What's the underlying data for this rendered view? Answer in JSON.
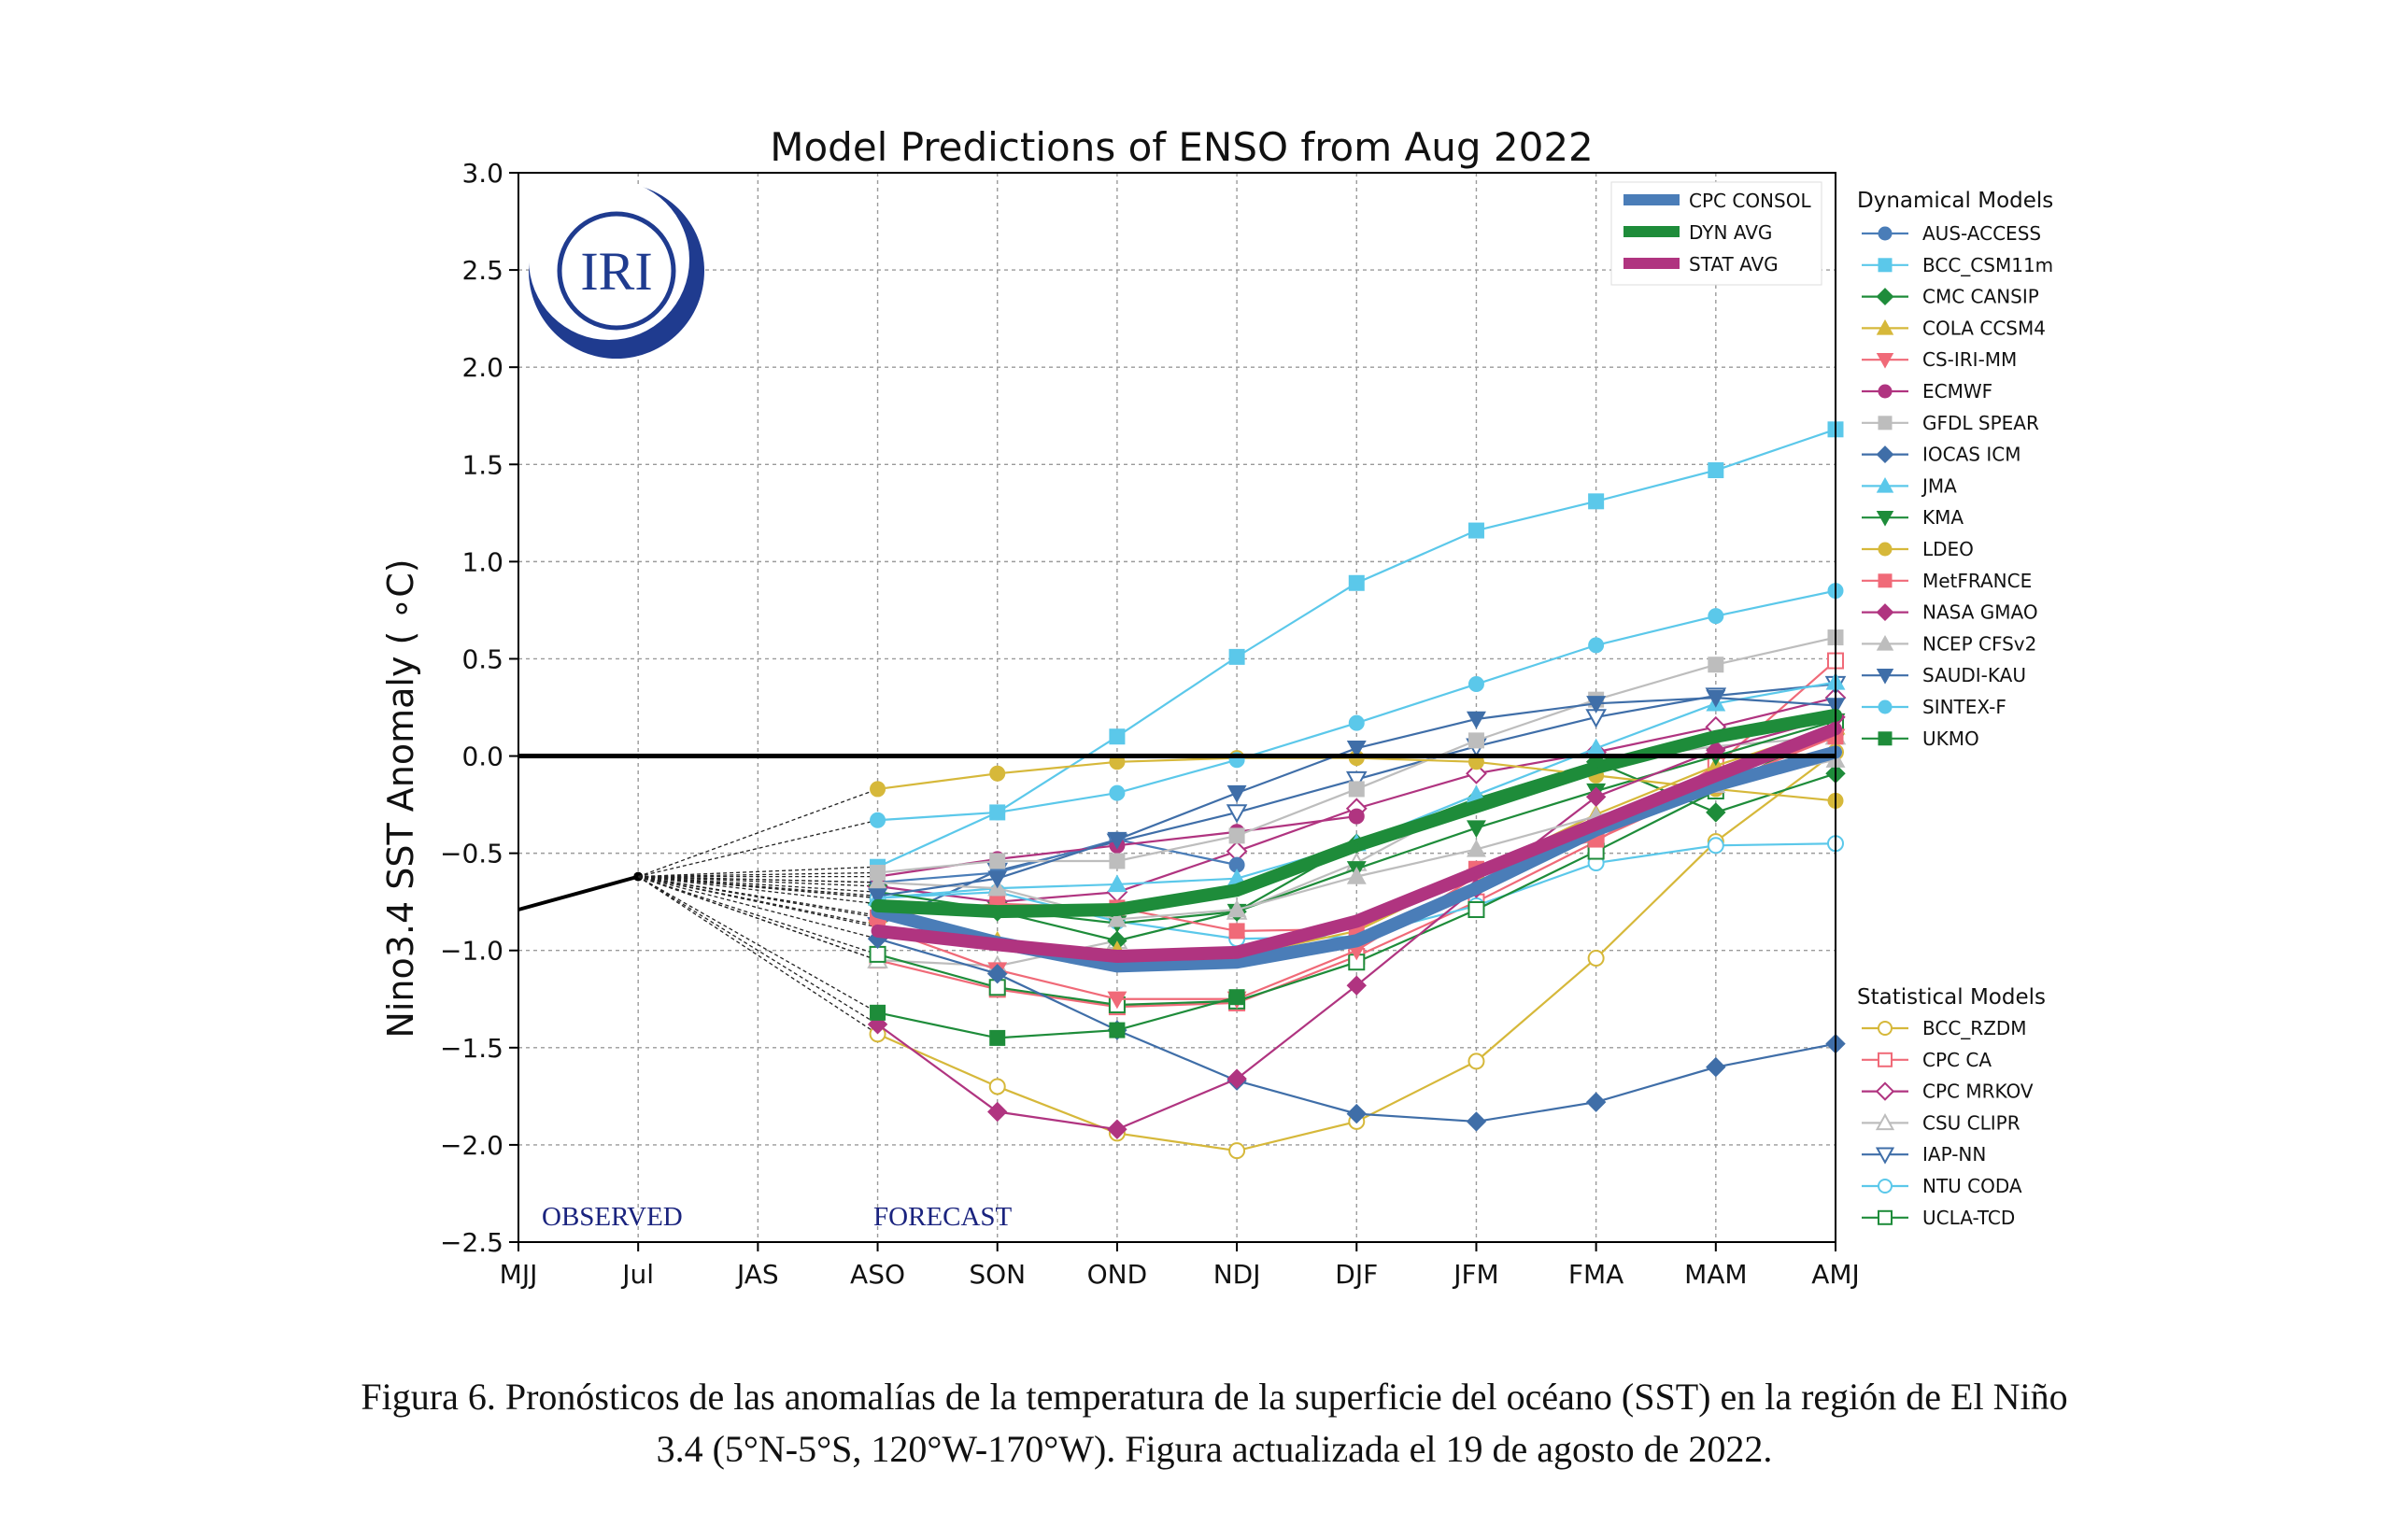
{
  "chart_data": {
    "type": "line",
    "title": "Model Predictions of ENSO from Aug 2022",
    "xlabel": "",
    "ylabel": "Nino3.4 SST Anomaly ( ∘C)",
    "ylim": [
      -2.5,
      3.0
    ],
    "yticks": [
      "−2.5",
      "−2.0",
      "−1.5",
      "−1.0",
      "−0.5",
      "0.0",
      "0.5",
      "1.0",
      "1.5",
      "2.0",
      "2.5",
      "3.0"
    ],
    "categories": [
      "MJJ",
      "Jul",
      "JAS",
      "ASO",
      "SON",
      "OND",
      "NDJ",
      "DJF",
      "JFM",
      "FMA",
      "MAM",
      "AMJ"
    ],
    "grid": true,
    "annotations": {
      "observed": "OBSERVED",
      "forecast": "FORECAST"
    },
    "logo_text": "IRI",
    "observed": {
      "x": [
        "MJJ",
        "Jul"
      ],
      "values": [
        -0.79,
        -0.62
      ]
    },
    "forecast_x": [
      "ASO",
      "SON",
      "OND",
      "NDJ",
      "DJF",
      "JFM",
      "FMA",
      "MAM",
      "AMJ"
    ],
    "legend_main": [
      {
        "name": "CPC CONSOL",
        "color": "#4a7db8"
      },
      {
        "name": "DYN AVG",
        "color": "#1e8c3a"
      },
      {
        "name": "STAT AVG",
        "color": "#b03480"
      }
    ],
    "legend_dyn_title": "Dynamical Models",
    "legend_stat_title": "Statistical Models",
    "dyn_series": [
      {
        "name": "AUS-ACCESS",
        "color": "#4a7db8",
        "marker": "circle",
        "values": [
          -0.65,
          -0.6,
          -0.43,
          -0.56,
          null,
          null,
          null,
          null,
          null
        ]
      },
      {
        "name": "BCC_CSM11m",
        "color": "#5bc8ea",
        "marker": "square",
        "values": [
          -0.57,
          -0.29,
          0.1,
          0.51,
          0.89,
          1.16,
          1.31,
          1.47,
          1.68
        ]
      },
      {
        "name": "CMC CANSIP",
        "color": "#1e8c3a",
        "marker": "diamond",
        "values": [
          -0.76,
          -0.8,
          -0.95,
          -0.8,
          -0.45,
          -0.22,
          -0.03,
          -0.29,
          -0.09
        ]
      },
      {
        "name": "COLA CCSM4",
        "color": "#d6b83a",
        "marker": "triangle-up",
        "values": [
          -0.82,
          -0.95,
          -1.0,
          -1.03,
          -0.9,
          -0.6,
          -0.3,
          -0.05,
          0.15
        ]
      },
      {
        "name": "CS-IRI-MM",
        "color": "#f06a78",
        "marker": "triangle-down",
        "values": [
          -0.88,
          -1.1,
          -1.25,
          -1.25,
          -1.0,
          -0.62,
          -0.36,
          -0.12,
          0.1
        ]
      },
      {
        "name": "ECMWF",
        "color": "#b03480",
        "marker": "circle",
        "values": [
          -0.62,
          -0.53,
          -0.46,
          -0.39,
          -0.31,
          null,
          null,
          null,
          null
        ]
      },
      {
        "name": "GFDL SPEAR",
        "color": "#bdbdbd",
        "marker": "square",
        "values": [
          -0.6,
          -0.54,
          -0.54,
          -0.41,
          -0.17,
          0.08,
          0.29,
          0.47,
          0.61
        ]
      },
      {
        "name": "IOCAS ICM",
        "color": "#3f6ea8",
        "marker": "diamond",
        "values": [
          -0.94,
          -1.12,
          -1.41,
          -1.67,
          -1.84,
          -1.88,
          -1.78,
          -1.6,
          -1.48
        ]
      },
      {
        "name": "JMA",
        "color": "#5bc8ea",
        "marker": "triangle-up",
        "values": [
          -0.73,
          -0.68,
          -0.66,
          -0.63,
          -0.45,
          -0.2,
          0.04,
          0.27,
          0.38
        ]
      },
      {
        "name": "KMA",
        "color": "#1e8c3a",
        "marker": "triangle-down",
        "values": [
          -0.7,
          -0.79,
          -0.86,
          -0.8,
          -0.58,
          -0.37,
          -0.18,
          0.0,
          0.18
        ]
      },
      {
        "name": "LDEO",
        "color": "#d6b83a",
        "marker": "circle",
        "values": [
          -0.17,
          -0.09,
          -0.03,
          -0.01,
          -0.01,
          -0.03,
          -0.1,
          -0.17,
          -0.23
        ]
      },
      {
        "name": "MetFRANCE",
        "color": "#f06a78",
        "marker": "square",
        "values": [
          -0.83,
          -0.76,
          -0.78,
          -0.9,
          -0.89,
          -0.58,
          -0.43,
          -0.15,
          0.1
        ]
      },
      {
        "name": "NASA GMAO",
        "color": "#b03480",
        "marker": "diamond",
        "values": [
          -1.38,
          -1.83,
          -1.92,
          -1.66,
          -1.18,
          -0.68,
          -0.21,
          0.03,
          0.2
        ]
      },
      {
        "name": "NCEP CFSv2",
        "color": "#bdbdbd",
        "marker": "triangle-up",
        "values": [
          -0.65,
          -0.68,
          -0.84,
          -0.79,
          -0.62,
          -0.48,
          -0.31,
          -0.15,
          -0.02
        ]
      },
      {
        "name": "SAUDI-KAU",
        "color": "#3f6ea8",
        "marker": "triangle-down",
        "values": [
          -0.72,
          -0.63,
          -0.43,
          -0.19,
          0.04,
          0.19,
          0.27,
          0.3,
          0.26
        ]
      },
      {
        "name": "SINTEX-F",
        "color": "#5bc8ea",
        "marker": "circle",
        "values": [
          -0.33,
          -0.29,
          -0.19,
          -0.02,
          0.17,
          0.37,
          0.57,
          0.72,
          0.85
        ]
      },
      {
        "name": "UKMO",
        "color": "#1e8c3a",
        "marker": "square",
        "values": [
          -1.32,
          -1.45,
          -1.41,
          -1.24,
          null,
          null,
          null,
          null,
          null
        ]
      }
    ],
    "stat_series": [
      {
        "name": "BCC_RZDM",
        "color": "#d6b83a",
        "marker": "circle-open",
        "values": [
          -1.43,
          -1.7,
          -1.94,
          -2.03,
          -1.88,
          -1.57,
          -1.04,
          -0.44,
          0.02
        ]
      },
      {
        "name": "CPC CA",
        "color": "#f06a78",
        "marker": "square-open",
        "values": [
          -1.05,
          -1.2,
          -1.29,
          -1.27,
          -1.03,
          -0.75,
          -0.44,
          -0.05,
          0.49
        ]
      },
      {
        "name": "CPC MRKOV",
        "color": "#b03480",
        "marker": "diamond-open",
        "values": [
          -0.67,
          -0.75,
          -0.7,
          -0.49,
          -0.27,
          -0.09,
          0.02,
          0.15,
          0.3
        ]
      },
      {
        "name": "CSU CLIPR",
        "color": "#bdbdbd",
        "marker": "triangle-up-open",
        "values": [
          -1.05,
          -1.08,
          -0.95,
          -0.8,
          -0.55,
          -0.22,
          -0.03,
          0.05,
          0.1
        ]
      },
      {
        "name": "IAP-NN",
        "color": "#3f6ea8",
        "marker": "triangle-down-open",
        "values": [
          -0.87,
          -0.59,
          -0.44,
          -0.29,
          -0.12,
          0.05,
          0.2,
          0.31,
          0.37
        ]
      },
      {
        "name": "NTU CODA",
        "color": "#5bc8ea",
        "marker": "circle-open",
        "values": [
          -0.73,
          -0.7,
          -0.85,
          -0.94,
          -0.93,
          -0.77,
          -0.55,
          -0.46,
          -0.45
        ]
      },
      {
        "name": "UCLA-TCD",
        "color": "#1e8c3a",
        "marker": "square-open",
        "values": [
          -1.02,
          -1.19,
          -1.28,
          -1.26,
          -1.06,
          -0.79,
          -0.49,
          -0.18,
          0.15
        ]
      }
    ],
    "avg_series": [
      {
        "name": "CPC CONSOL",
        "color": "#4a7db8",
        "values": [
          -0.8,
          -0.96,
          -1.08,
          -1.06,
          -0.95,
          -0.68,
          -0.38,
          -0.15,
          0.02
        ]
      },
      {
        "name": "DYN AVG",
        "color": "#1e8c3a",
        "values": [
          -0.77,
          -0.8,
          -0.79,
          -0.69,
          -0.46,
          -0.26,
          -0.06,
          0.1,
          0.21
        ]
      },
      {
        "name": "STAT AVG",
        "color": "#b03480",
        "values": [
          -0.9,
          -0.97,
          -1.03,
          -1.01,
          -0.85,
          -0.6,
          -0.35,
          -0.1,
          0.14
        ]
      }
    ]
  },
  "caption": {
    "line1": "Figura 6. Pronósticos de las anomalías de la temperatura de la superficie del océano (SST) en la región de El Niño",
    "line2": "3.4 (5°N-5°S, 120°W-170°W). Figura actualizada el 19 de agosto de 2022."
  }
}
